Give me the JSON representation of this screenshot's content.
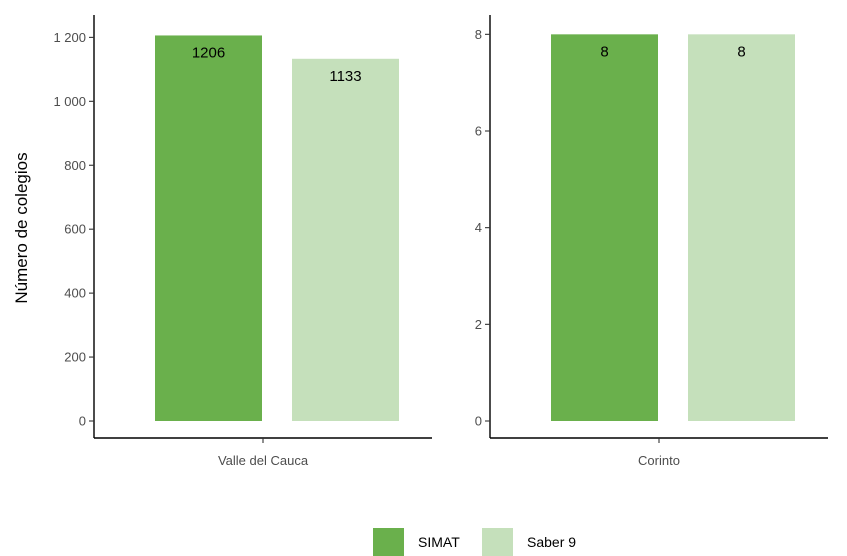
{
  "chart_data": {
    "type": "bar",
    "ylabel": "Número de colegios",
    "legend": {
      "position": "bottom",
      "entries": [
        {
          "name": "SIMAT",
          "color": "#6ab04c"
        },
        {
          "name": "Saber 9",
          "color": "#c5e0bb"
        }
      ]
    },
    "grid": false,
    "panels": [
      {
        "category": "Valle del Cauca",
        "ylim": [
          0,
          1270
        ],
        "yticks": [
          0,
          200,
          400,
          600,
          800,
          1000,
          1200
        ],
        "ytick_labels": [
          "0",
          "200",
          "400",
          "600",
          "800",
          "1 000",
          "1 200"
        ],
        "series": [
          {
            "name": "SIMAT",
            "value": 1206,
            "label": "1206"
          },
          {
            "name": "Saber 9",
            "value": 1133,
            "label": "1133"
          }
        ]
      },
      {
        "category": "Corinto",
        "ylim": [
          0,
          8.4
        ],
        "yticks": [
          0,
          2,
          4,
          6,
          8
        ],
        "ytick_labels": [
          "0",
          "2",
          "4",
          "6",
          "8"
        ],
        "series": [
          {
            "name": "SIMAT",
            "value": 8,
            "label": "8"
          },
          {
            "name": "Saber 9",
            "value": 8,
            "label": "8"
          }
        ]
      }
    ]
  }
}
